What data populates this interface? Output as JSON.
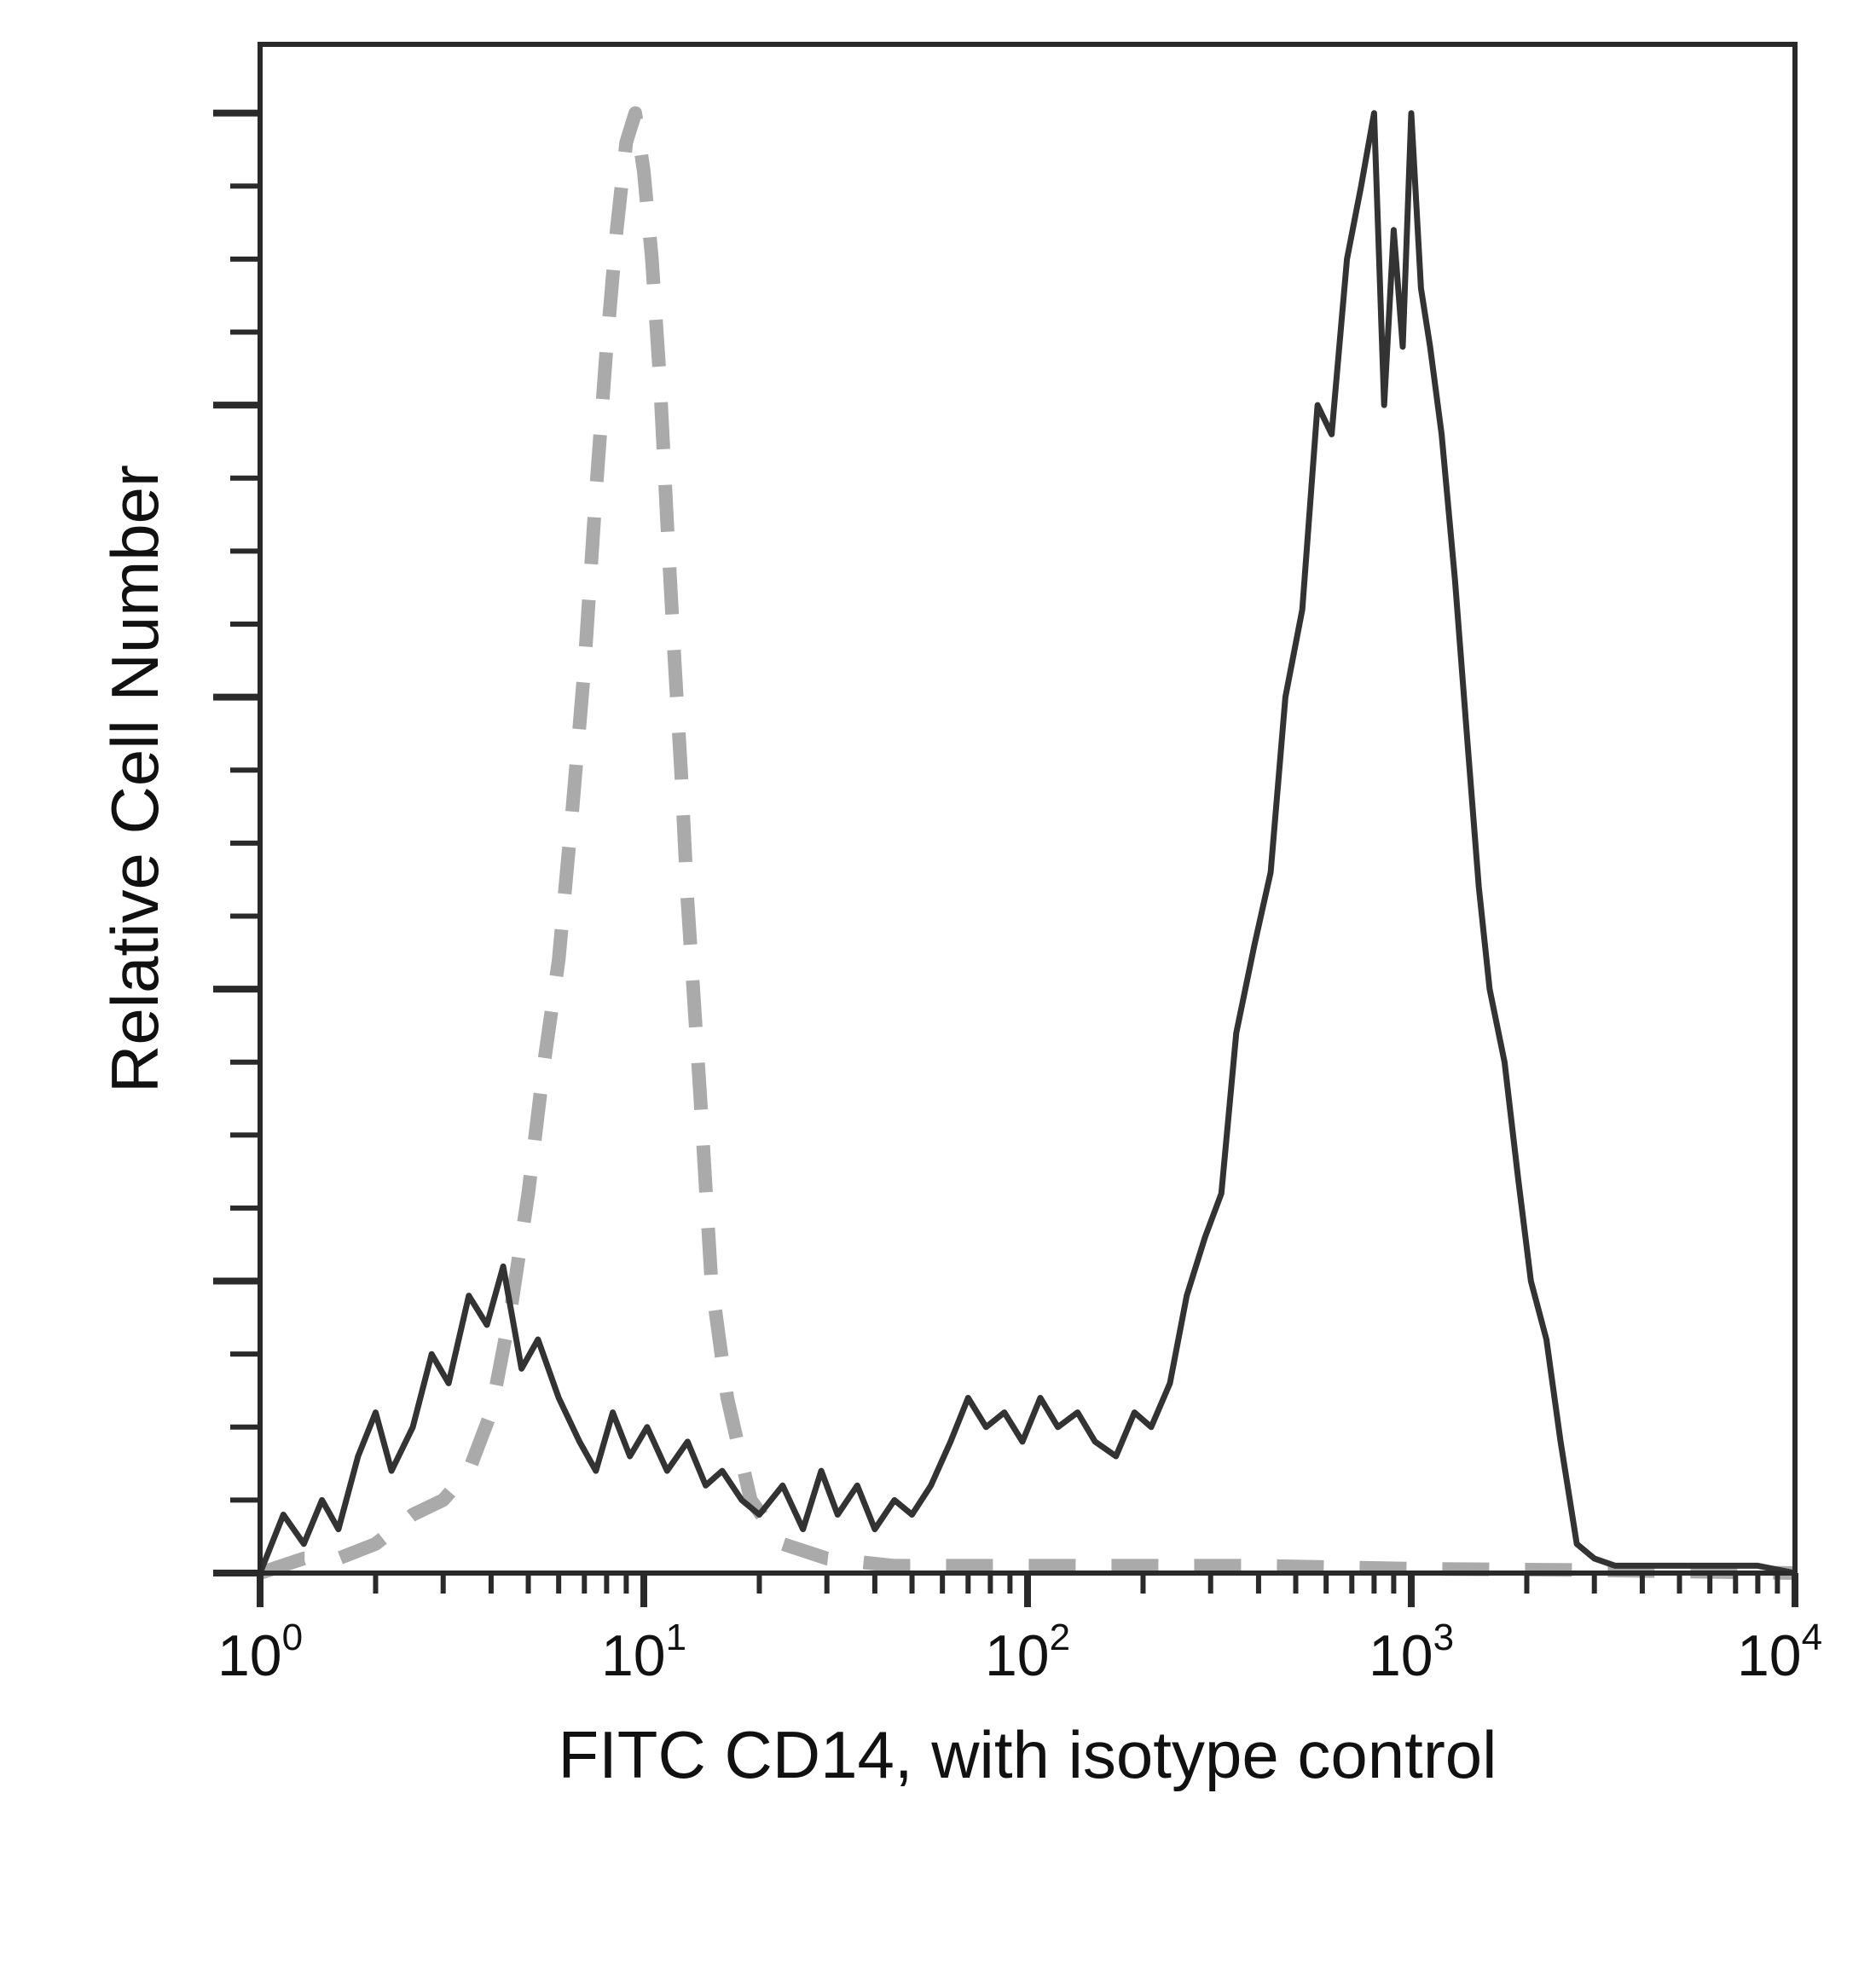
{
  "chart_data": {
    "type": "line",
    "title": "",
    "xlabel": "FITC CD14, with isotype control",
    "ylabel": "Relative Cell Number",
    "x_scale": "log",
    "xlim": [
      1,
      10000
    ],
    "ylim": [
      0,
      100
    ],
    "x_ticks": [
      {
        "base": "10",
        "exp": "0"
      },
      {
        "base": "10",
        "exp": "1"
      },
      {
        "base": "10",
        "exp": "2"
      },
      {
        "base": "10",
        "exp": "3"
      },
      {
        "base": "10",
        "exp": "4"
      }
    ],
    "y_tick_labels": "none",
    "grid": false,
    "legend": "none",
    "series": [
      {
        "style": "solid",
        "color": "#333333",
        "x": [
          1.0,
          1.15,
          1.3,
          1.45,
          1.6,
          1.8,
          2.0,
          2.2,
          2.5,
          2.8,
          3.1,
          3.5,
          3.9,
          4.3,
          4.8,
          5.3,
          6.0,
          6.8,
          7.5,
          8.3,
          9.2,
          10.2,
          11.5,
          13,
          14.5,
          16,
          18,
          20,
          23,
          26,
          29,
          32,
          36,
          40,
          45,
          50,
          56,
          63,
          70,
          78,
          87,
          97,
          108,
          120,
          135,
          150,
          170,
          190,
          210,
          235,
          260,
          290,
          320,
          350,
          390,
          430,
          470,
          520,
          570,
          620,
          680,
          740,
          800,
          850,
          900,
          950,
          1000,
          1060,
          1120,
          1200,
          1300,
          1400,
          1500,
          1600,
          1750,
          1900,
          2050,
          2250,
          2450,
          2700,
          3000,
          3400,
          4000,
          5000,
          6500,
          8000,
          10000
        ],
        "y": [
          0,
          4,
          2,
          5,
          3,
          8,
          11,
          7,
          10,
          15,
          13,
          19,
          17,
          21,
          14,
          16,
          12,
          9,
          7,
          11,
          8,
          10,
          7,
          9,
          6,
          7,
          5,
          4,
          6,
          3,
          7,
          4,
          6,
          3,
          5,
          4,
          6,
          9,
          12,
          10,
          11,
          9,
          12,
          10,
          11,
          9,
          8,
          11,
          10,
          13,
          19,
          23,
          26,
          37,
          43,
          48,
          60,
          66,
          80,
          78,
          90,
          95,
          100,
          80,
          92,
          84,
          100,
          88,
          84,
          78,
          68,
          57,
          47,
          40,
          35,
          27,
          20,
          16,
          9,
          2,
          1,
          0.5,
          0.5,
          0.5,
          0.5,
          0.5,
          0
        ],
        "name": ""
      },
      {
        "style": "dashed",
        "color": "#aaaaaa",
        "x": [
          1.0,
          1.3,
          1.6,
          2.0,
          2.5,
          3.0,
          3.5,
          4.0,
          4.5,
          5.0,
          5.5,
          6.0,
          6.5,
          7.0,
          7.5,
          8.0,
          8.5,
          9.0,
          9.5,
          10.0,
          10.5,
          11.0,
          11.5,
          12.0,
          12.5,
          13.0,
          14.0,
          15.0,
          16.5,
          19,
          23,
          30,
          45,
          70,
          100,
          200,
          400,
          1000,
          3000,
          10000
        ],
        "y": [
          0,
          1,
          1,
          2,
          4,
          5,
          7,
          11,
          18,
          26,
          35,
          42,
          52,
          62,
          74,
          84,
          92,
          98,
          100,
          96,
          90,
          82,
          72,
          63,
          55,
          46,
          33,
          20,
          12,
          5,
          2,
          1,
          0.5,
          0.5,
          0.5,
          0.5,
          0.5,
          0.3,
          0.2,
          0
        ],
        "name": ""
      }
    ]
  }
}
